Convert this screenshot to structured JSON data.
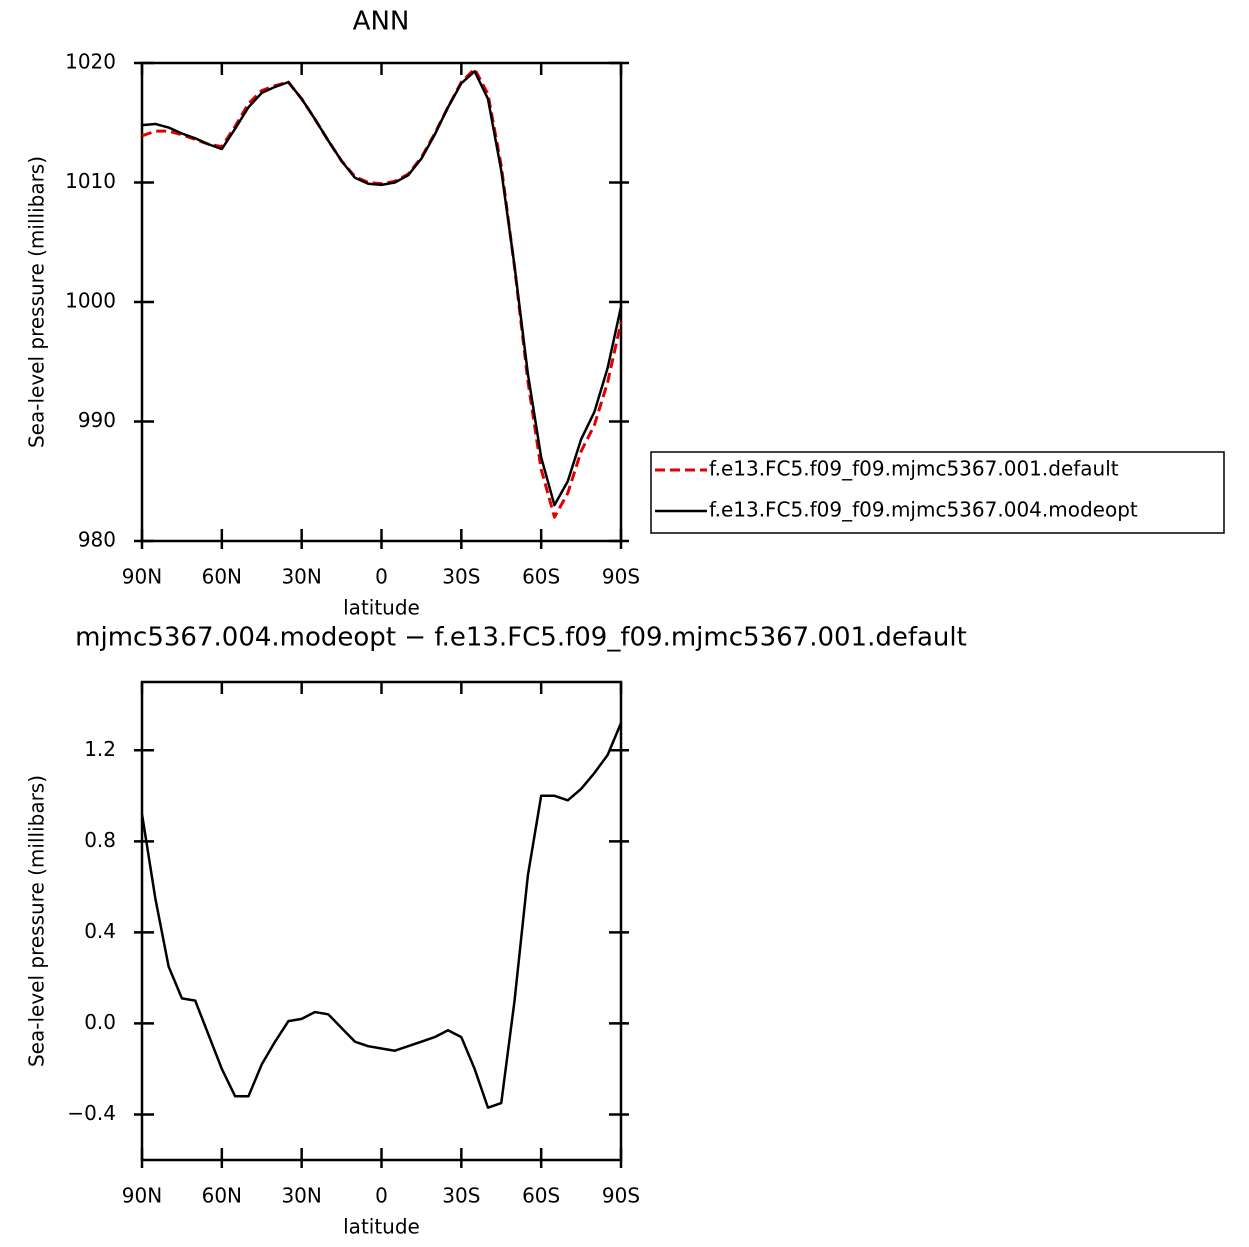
{
  "chart_data": [
    {
      "type": "line",
      "title": "ANN",
      "xlabel": "latitude",
      "ylabel": "Sea-level pressure (millibars)",
      "x": [
        90,
        85,
        80,
        75,
        70,
        65,
        60,
        55,
        50,
        45,
        40,
        35,
        30,
        25,
        20,
        15,
        10,
        5,
        0,
        -5,
        -10,
        -15,
        -20,
        -25,
        -30,
        -35,
        -40,
        -45,
        -50,
        -55,
        -60,
        -65,
        -70,
        -75,
        -80,
        -85,
        -90
      ],
      "series": [
        {
          "name": "f.e13.FC5.f09_f09.mjmc5367.001.default",
          "color": "#e00000",
          "dash": true,
          "values": [
            1013.9,
            1014.3,
            1014.3,
            1014.0,
            1013.6,
            1013.2,
            1013.0,
            1014.7,
            1016.6,
            1017.7,
            1018.1,
            1018.4,
            1017.0,
            1015.3,
            1013.5,
            1011.8,
            1010.5,
            1010.0,
            1009.9,
            1010.1,
            1010.7,
            1012.1,
            1014.1,
            1016.3,
            1018.4,
            1019.5,
            1017.4,
            1011.4,
            1002.9,
            993.4,
            986.0,
            982.0,
            984.0,
            987.5,
            989.7,
            993.3,
            998.3
          ]
        },
        {
          "name": "f.e13.FC5.f09_f09.mjmc5367.004.modeopt",
          "color": "#000000",
          "dash": false,
          "values": [
            1014.8,
            1014.9,
            1014.6,
            1014.1,
            1013.7,
            1013.2,
            1012.8,
            1014.5,
            1016.3,
            1017.5,
            1018.0,
            1018.4,
            1017.0,
            1015.3,
            1013.5,
            1011.8,
            1010.4,
            1009.9,
            1009.8,
            1010.0,
            1010.6,
            1012.0,
            1014.0,
            1016.3,
            1018.3,
            1019.3,
            1017.0,
            1011.0,
            1003.0,
            994.0,
            987.0,
            983.0,
            985.0,
            988.5,
            990.8,
            994.5,
            999.6
          ]
        }
      ],
      "xlim": [
        90,
        -90
      ],
      "xticks": [
        {
          "value": 90,
          "label": "90N"
        },
        {
          "value": 60,
          "label": "60N"
        },
        {
          "value": 30,
          "label": "30N"
        },
        0,
        {
          "value": -30,
          "label": "30S"
        },
        {
          "value": -60,
          "label": "60S"
        },
        {
          "value": -90,
          "label": "90S"
        }
      ],
      "ylim": [
        980,
        1020
      ],
      "yticks": [
        980,
        990,
        1000,
        1010,
        1020
      ],
      "legend": "right"
    },
    {
      "type": "line",
      "title": "mjmc5367.004.modeopt − f.e13.FC5.f09_f09.mjmc5367.001.default",
      "xlabel": "latitude",
      "ylabel": "Sea-level pressure (millibars)",
      "x": [
        90,
        85,
        80,
        75,
        70,
        65,
        60,
        55,
        50,
        45,
        40,
        35,
        30,
        25,
        20,
        15,
        10,
        5,
        0,
        -5,
        -10,
        -15,
        -20,
        -25,
        -30,
        -35,
        -40,
        -45,
        -50,
        -55,
        -60,
        -65,
        -70,
        -75,
        -80,
        -85,
        -90
      ],
      "series": [
        {
          "color": "#000000",
          "dash": false,
          "values": [
            0.92,
            0.55,
            0.25,
            0.11,
            0.1,
            -0.05,
            -0.2,
            -0.32,
            -0.32,
            -0.18,
            -0.08,
            0.01,
            0.02,
            0.05,
            0.04,
            -0.02,
            -0.08,
            -0.1,
            -0.11,
            -0.12,
            -0.1,
            -0.08,
            -0.06,
            -0.03,
            -0.06,
            -0.2,
            -0.37,
            -0.35,
            0.1,
            0.65,
            1.0,
            1.0,
            0.98,
            1.03,
            1.1,
            1.18,
            1.32
          ]
        }
      ],
      "xlim": [
        90,
        -90
      ],
      "xticks": [
        {
          "value": 90,
          "label": "90N"
        },
        {
          "value": 60,
          "label": "60N"
        },
        {
          "value": 30,
          "label": "30N"
        },
        0,
        {
          "value": -30,
          "label": "30S"
        },
        {
          "value": -60,
          "label": "60S"
        },
        {
          "value": -90,
          "label": "90S"
        }
      ],
      "ylim": [
        -0.6,
        1.5
      ],
      "yticks": [
        {
          "value": -0.4,
          "label": "−0.4"
        },
        {
          "value": 0,
          "label": "0.0"
        },
        0.4,
        0.8,
        1.2
      ]
    }
  ]
}
